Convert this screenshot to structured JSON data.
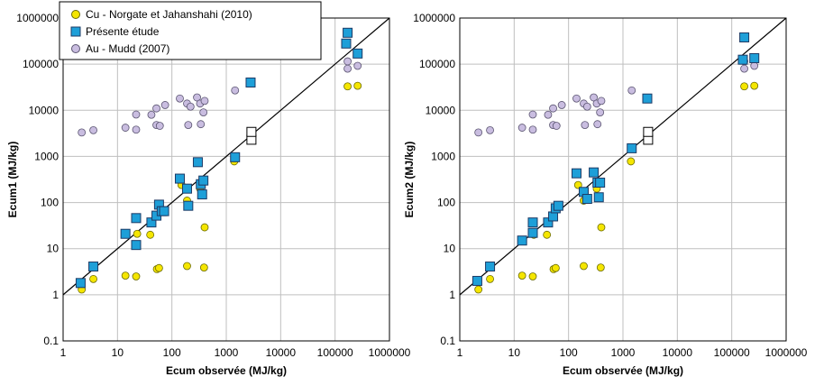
{
  "colors": {
    "cu": "#f5e600",
    "cu_edge": "#6b6b00",
    "presente": "#1e9fd8",
    "presente_edge": "#1d3b66",
    "au": "#c9bde0",
    "au_edge": "#5a5470",
    "reference": "#000000",
    "grid": "#bfbfbf"
  },
  "chart_data": [
    {
      "type": "scatter",
      "xlabel": "Ecum observée (MJ/kg)",
      "ylabel": "Ecum1 (MJ/kg)",
      "xscale": "log",
      "yscale": "log",
      "xlim": [
        1,
        1000000
      ],
      "ylim": [
        0.1,
        1000000
      ],
      "x_ticks": [
        "1",
        "10",
        "100",
        "1000",
        "10000",
        "100000",
        "1000000"
      ],
      "y_ticks": [
        "0.1",
        "1",
        "10",
        "100",
        "1000",
        "10000",
        "100000",
        "1000000"
      ],
      "grid": true,
      "legend": {
        "position": "top-left",
        "entries": [
          "Cu - Norgate et Jahanshahi (2010)",
          "Présente étude",
          "Au - Mudd (2007)"
        ]
      },
      "reference_line": "y = x",
      "series": [
        {
          "name": "Cu - Norgate et Jahanshahi (2010)",
          "marker": "circle",
          "points": [
            [
              2.2,
              1.3
            ],
            [
              3.6,
              2.2
            ],
            [
              14,
              2.6
            ],
            [
              22,
              2.5
            ],
            [
              23,
              21
            ],
            [
              40,
              20
            ],
            [
              53,
              3.6
            ],
            [
              58,
              3.8
            ],
            [
              150,
              240
            ],
            [
              190,
              4.2
            ],
            [
              190,
              110
            ],
            [
              390,
              3.9
            ],
            [
              400,
              29
            ],
            [
              330,
              200
            ],
            [
              1400,
              780
            ],
            [
              170000,
              33000
            ],
            [
              260000,
              34000
            ]
          ]
        },
        {
          "name": "Présente étude",
          "marker": "square",
          "points": [
            [
              2.1,
              1.8
            ],
            [
              3.6,
              4.1
            ],
            [
              14,
              21
            ],
            [
              22,
              12
            ],
            [
              22,
              46
            ],
            [
              42,
              37
            ],
            [
              52,
              52
            ],
            [
              58,
              90
            ],
            [
              65,
              65
            ],
            [
              72,
              65
            ],
            [
              140,
              330
            ],
            [
              190,
              200
            ],
            [
              200,
              85
            ],
            [
              300,
              750
            ],
            [
              340,
              250
            ],
            [
              360,
              150
            ],
            [
              380,
              300
            ],
            [
              1450,
              960
            ],
            [
              2800,
              40000
            ],
            [
              160000,
              280000
            ],
            [
              170000,
              480000
            ],
            [
              260000,
              170000
            ]
          ]
        },
        {
          "name": "Au - Mudd (2007)",
          "marker": "circle",
          "points": [
            [
              2.2,
              3300
            ],
            [
              3.6,
              3700
            ],
            [
              14,
              4200
            ],
            [
              22,
              3800
            ],
            [
              22,
              8100
            ],
            [
              42,
              8000
            ],
            [
              52,
              11000
            ],
            [
              52,
              4800
            ],
            [
              60,
              4600
            ],
            [
              75,
              13000
            ],
            [
              140,
              18000
            ],
            [
              190,
              14000
            ],
            [
              200,
              4800
            ],
            [
              220,
              12000
            ],
            [
              290,
              19000
            ],
            [
              330,
              14000
            ],
            [
              340,
              5000
            ],
            [
              380,
              9000
            ],
            [
              400,
              16000
            ],
            [
              1450,
              27000
            ],
            [
              170000,
              80000
            ],
            [
              170000,
              115000
            ],
            [
              260000,
              92000
            ]
          ]
        },
        {
          "name": "",
          "marker": "open-square",
          "points": [
            [
              2900,
              2300
            ],
            [
              2900,
              3400
            ]
          ]
        }
      ]
    },
    {
      "type": "scatter",
      "xlabel": "Ecum observée (MJ/kg)",
      "ylabel": "Ecum2 (MJ/kg)",
      "xscale": "log",
      "yscale": "log",
      "xlim": [
        1,
        1000000
      ],
      "ylim": [
        0.1,
        1000000
      ],
      "x_ticks": [
        "1",
        "10",
        "100",
        "1000",
        "10000",
        "100000",
        "1000000"
      ],
      "y_ticks": [
        "0.1",
        "1",
        "10",
        "100",
        "1000",
        "10000",
        "100000",
        "1000000"
      ],
      "grid": true,
      "reference_line": "y = x",
      "series": [
        {
          "name": "Cu - Norgate et Jahanshahi (2010)",
          "marker": "circle",
          "points": [
            [
              2.2,
              1.3
            ],
            [
              3.6,
              2.2
            ],
            [
              14,
              2.6
            ],
            [
              22,
              2.5
            ],
            [
              23,
              20
            ],
            [
              40,
              20
            ],
            [
              53,
              3.6
            ],
            [
              58,
              3.8
            ],
            [
              150,
              240
            ],
            [
              190,
              4.2
            ],
            [
              190,
              110
            ],
            [
              390,
              3.9
            ],
            [
              400,
              29
            ],
            [
              330,
              200
            ],
            [
              1400,
              780
            ],
            [
              170000,
              33000
            ],
            [
              260000,
              34000
            ]
          ]
        },
        {
          "name": "Présente étude",
          "marker": "square",
          "points": [
            [
              2.1,
              2.0
            ],
            [
              3.6,
              4.1
            ],
            [
              14,
              15
            ],
            [
              22,
              37
            ],
            [
              22,
              22
            ],
            [
              42,
              37
            ],
            [
              52,
              50
            ],
            [
              58,
              75
            ],
            [
              65,
              85
            ],
            [
              140,
              430
            ],
            [
              190,
              170
            ],
            [
              220,
              120
            ],
            [
              290,
              450
            ],
            [
              340,
              270
            ],
            [
              360,
              130
            ],
            [
              380,
              270
            ],
            [
              1450,
              1500
            ],
            [
              2800,
              18000
            ],
            [
              160000,
              125000
            ],
            [
              170000,
              380000
            ],
            [
              260000,
              135000
            ]
          ]
        },
        {
          "name": "Au - Mudd (2007)",
          "marker": "circle",
          "points": [
            [
              2.2,
              3300
            ],
            [
              3.6,
              3700
            ],
            [
              14,
              4200
            ],
            [
              22,
              3800
            ],
            [
              22,
              8100
            ],
            [
              42,
              8000
            ],
            [
              52,
              11000
            ],
            [
              52,
              4800
            ],
            [
              60,
              4600
            ],
            [
              75,
              13000
            ],
            [
              140,
              18000
            ],
            [
              190,
              14000
            ],
            [
              200,
              4800
            ],
            [
              220,
              12000
            ],
            [
              290,
              19000
            ],
            [
              330,
              14000
            ],
            [
              340,
              5000
            ],
            [
              380,
              9000
            ],
            [
              400,
              16000
            ],
            [
              1450,
              27000
            ],
            [
              170000,
              80000
            ],
            [
              170000,
              115000
            ],
            [
              260000,
              92000
            ]
          ]
        },
        {
          "name": "",
          "marker": "open-square",
          "points": [
            [
              2900,
              2300
            ],
            [
              2900,
              3400
            ]
          ]
        }
      ]
    }
  ]
}
